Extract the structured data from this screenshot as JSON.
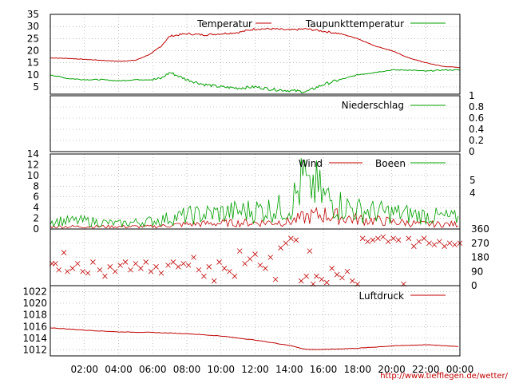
{
  "credit": "http://www.tiefflegen.de/wetter/",
  "colors": {
    "red": "#c00000",
    "green": "#00a000",
    "grid": "#999999",
    "frame": "#000000"
  },
  "chart_data": [
    {
      "type": "line",
      "name": "temperature",
      "legend": [
        "Temperatur",
        "Taupunkttemperatur"
      ],
      "ylim": [
        2,
        35
      ],
      "yticks": [
        "5",
        "10",
        "15",
        "20",
        "25",
        "30",
        "35"
      ],
      "x_hours": [
        0,
        1,
        2,
        3,
        4,
        5,
        6,
        6.5,
        7,
        8,
        9,
        10,
        11,
        12,
        13,
        14,
        15,
        16,
        17,
        18,
        19,
        20,
        21,
        22,
        23,
        24
      ],
      "series": [
        {
          "name": "Temperatur",
          "values": [
            17,
            16.8,
            16.4,
            16,
            15.6,
            16,
            19,
            22,
            26,
            27,
            26.5,
            27,
            27.5,
            29,
            29,
            28.5,
            29,
            28,
            27,
            25,
            22,
            20,
            17,
            15,
            13.5,
            13
          ]
        },
        {
          "name": "Taupunkttemperatur",
          "values": [
            10,
            8.5,
            8,
            8,
            7.5,
            8,
            8,
            8.5,
            11,
            8,
            6,
            5,
            4.5,
            5,
            4,
            3.5,
            3,
            6,
            8,
            10,
            11,
            12,
            12,
            11.5,
            12,
            12
          ]
        }
      ]
    },
    {
      "type": "line",
      "name": "precipitation",
      "legend": [
        "Niederschlag"
      ],
      "ylim": [
        0,
        1
      ],
      "yticks": [
        "0",
        "0.2",
        "0.4",
        "0.6",
        "0.8",
        "1"
      ],
      "series": [
        {
          "name": "Niederschlag",
          "values": [
            0,
            0
          ]
        }
      ]
    },
    {
      "type": "line",
      "name": "wind",
      "legend": [
        "Wind",
        "Boeen"
      ],
      "ylim": [
        0,
        14
      ],
      "yticks": [
        "0",
        "2",
        "4",
        "6",
        "8",
        "10",
        "12",
        "14"
      ],
      "y2ticks": [
        "4",
        "5"
      ],
      "x_hours": [
        0,
        2,
        4,
        6,
        8,
        10,
        12,
        14,
        15,
        16,
        17,
        18,
        20,
        22,
        24
      ],
      "series": [
        {
          "name": "Wind",
          "values": [
            0.5,
            0.5,
            0.5,
            0.5,
            1,
            1.2,
            1.3,
            1.5,
            2.5,
            3,
            2.5,
            2,
            1.5,
            1,
            1
          ]
        },
        {
          "name": "Boeen",
          "values": [
            1.5,
            1.5,
            1,
            1.5,
            2.5,
            3,
            3.5,
            4,
            10,
            6,
            4.5,
            3.5,
            3,
            2.5,
            2
          ]
        }
      ]
    },
    {
      "type": "scatter",
      "name": "wind-direction",
      "ylim": [
        0,
        360
      ],
      "yticks": [
        "0",
        "90",
        "180",
        "270",
        "360"
      ],
      "points": [
        [
          0.1,
          140
        ],
        [
          0.3,
          140
        ],
        [
          0.5,
          100
        ],
        [
          0.8,
          210
        ],
        [
          1.0,
          90
        ],
        [
          1.3,
          110
        ],
        [
          1.6,
          140
        ],
        [
          1.9,
          90
        ],
        [
          2.2,
          80
        ],
        [
          2.5,
          150
        ],
        [
          2.9,
          100
        ],
        [
          3.2,
          60
        ],
        [
          3.5,
          120
        ],
        [
          3.8,
          90
        ],
        [
          4.1,
          130
        ],
        [
          4.4,
          150
        ],
        [
          4.7,
          100
        ],
        [
          5.0,
          140
        ],
        [
          5.3,
          110
        ],
        [
          5.6,
          150
        ],
        [
          5.9,
          90
        ],
        [
          6.2,
          120
        ],
        [
          6.5,
          80
        ],
        [
          6.9,
          130
        ],
        [
          7.2,
          150
        ],
        [
          7.5,
          120
        ],
        [
          7.8,
          140
        ],
        [
          8.1,
          130
        ],
        [
          8.4,
          180
        ],
        [
          8.7,
          100
        ],
        [
          9.0,
          60
        ],
        [
          9.3,
          120
        ],
        [
          9.6,
          30
        ],
        [
          9.9,
          150
        ],
        [
          10.2,
          110
        ],
        [
          10.5,
          90
        ],
        [
          10.8,
          60
        ],
        [
          11.1,
          220
        ],
        [
          11.4,
          140
        ],
        [
          11.7,
          170
        ],
        [
          12.0,
          200
        ],
        [
          12.3,
          130
        ],
        [
          12.6,
          110
        ],
        [
          12.9,
          180
        ],
        [
          13.2,
          40
        ],
        [
          13.5,
          240
        ],
        [
          13.8,
          270
        ],
        [
          14.1,
          300
        ],
        [
          14.4,
          290
        ],
        [
          14.7,
          30
        ],
        [
          15.0,
          60
        ],
        [
          15.2,
          220
        ],
        [
          15.4,
          10
        ],
        [
          15.6,
          60
        ],
        [
          15.9,
          40
        ],
        [
          16.2,
          20
        ],
        [
          16.5,
          110
        ],
        [
          16.8,
          70
        ],
        [
          17.1,
          50
        ],
        [
          17.4,
          90
        ],
        [
          17.7,
          30
        ],
        [
          18.0,
          10
        ],
        [
          18.3,
          300
        ],
        [
          18.6,
          280
        ],
        [
          18.9,
          290
        ],
        [
          19.2,
          300
        ],
        [
          19.5,
          310
        ],
        [
          19.8,
          280
        ],
        [
          20.1,
          300
        ],
        [
          20.4,
          290
        ],
        [
          20.7,
          10
        ],
        [
          21.0,
          300
        ],
        [
          21.3,
          250
        ],
        [
          21.6,
          280
        ],
        [
          21.9,
          300
        ],
        [
          22.2,
          270
        ],
        [
          22.5,
          260
        ],
        [
          22.8,
          280
        ],
        [
          23.1,
          250
        ],
        [
          23.4,
          270
        ],
        [
          23.7,
          260
        ],
        [
          24.0,
          270
        ]
      ]
    },
    {
      "type": "line",
      "name": "pressure",
      "legend": [
        "Luftdruck"
      ],
      "ylim": [
        1011,
        1023
      ],
      "yticks": [
        "1012",
        "1014",
        "1016",
        "1018",
        "1020",
        "1022"
      ],
      "x_hours": [
        0,
        2,
        4,
        6,
        8,
        10,
        12,
        14,
        15,
        16,
        18,
        20,
        22,
        24
      ],
      "series": [
        {
          "name": "Luftdruck",
          "values": [
            1015.8,
            1015.4,
            1015.1,
            1015.0,
            1014.8,
            1014.4,
            1013.7,
            1012.8,
            1012.1,
            1012.1,
            1012.3,
            1012.7,
            1012.9,
            1012.6
          ]
        }
      ]
    }
  ],
  "x_axis": {
    "ticks": [
      "02:00",
      "04:00",
      "06:00",
      "08:00",
      "10:00",
      "12:00",
      "14:00",
      "16:00",
      "18:00",
      "20:00",
      "22:00",
      "00:00"
    ]
  }
}
